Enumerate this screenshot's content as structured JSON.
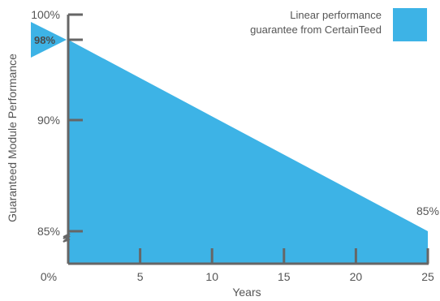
{
  "chart_data": {
    "type": "area",
    "title": "",
    "xlabel": "Years",
    "ylabel": "Guaranteed Module Performance",
    "x_ticks": [
      0,
      5,
      10,
      15,
      20,
      25
    ],
    "x_tick_labels": [
      "0%",
      "5",
      "10",
      "15",
      "20",
      "25"
    ],
    "y_ticks": [
      100,
      98,
      90,
      85
    ],
    "y_tick_labels": [
      "100%",
      "98%",
      "90%",
      "85%"
    ],
    "axis_break": true,
    "series": [
      {
        "name": "Linear performance guarantee from CertainTeed",
        "x": [
          0,
          25
        ],
        "y": [
          98,
          85
        ],
        "color": "#3db3e6"
      }
    ],
    "annotations": [
      {
        "text": "98%",
        "x": 0,
        "y": 98,
        "style": "flag-marker"
      },
      {
        "text": "85%",
        "x": 25,
        "y": 85
      }
    ],
    "legend": {
      "lines": [
        "Linear performance",
        "guarantee from CertainTeed"
      ],
      "placement": "top-right",
      "color": "#3db3e6"
    },
    "colors": {
      "fill": "#3db3e6",
      "axis": "#666666",
      "text": "#555555"
    }
  }
}
